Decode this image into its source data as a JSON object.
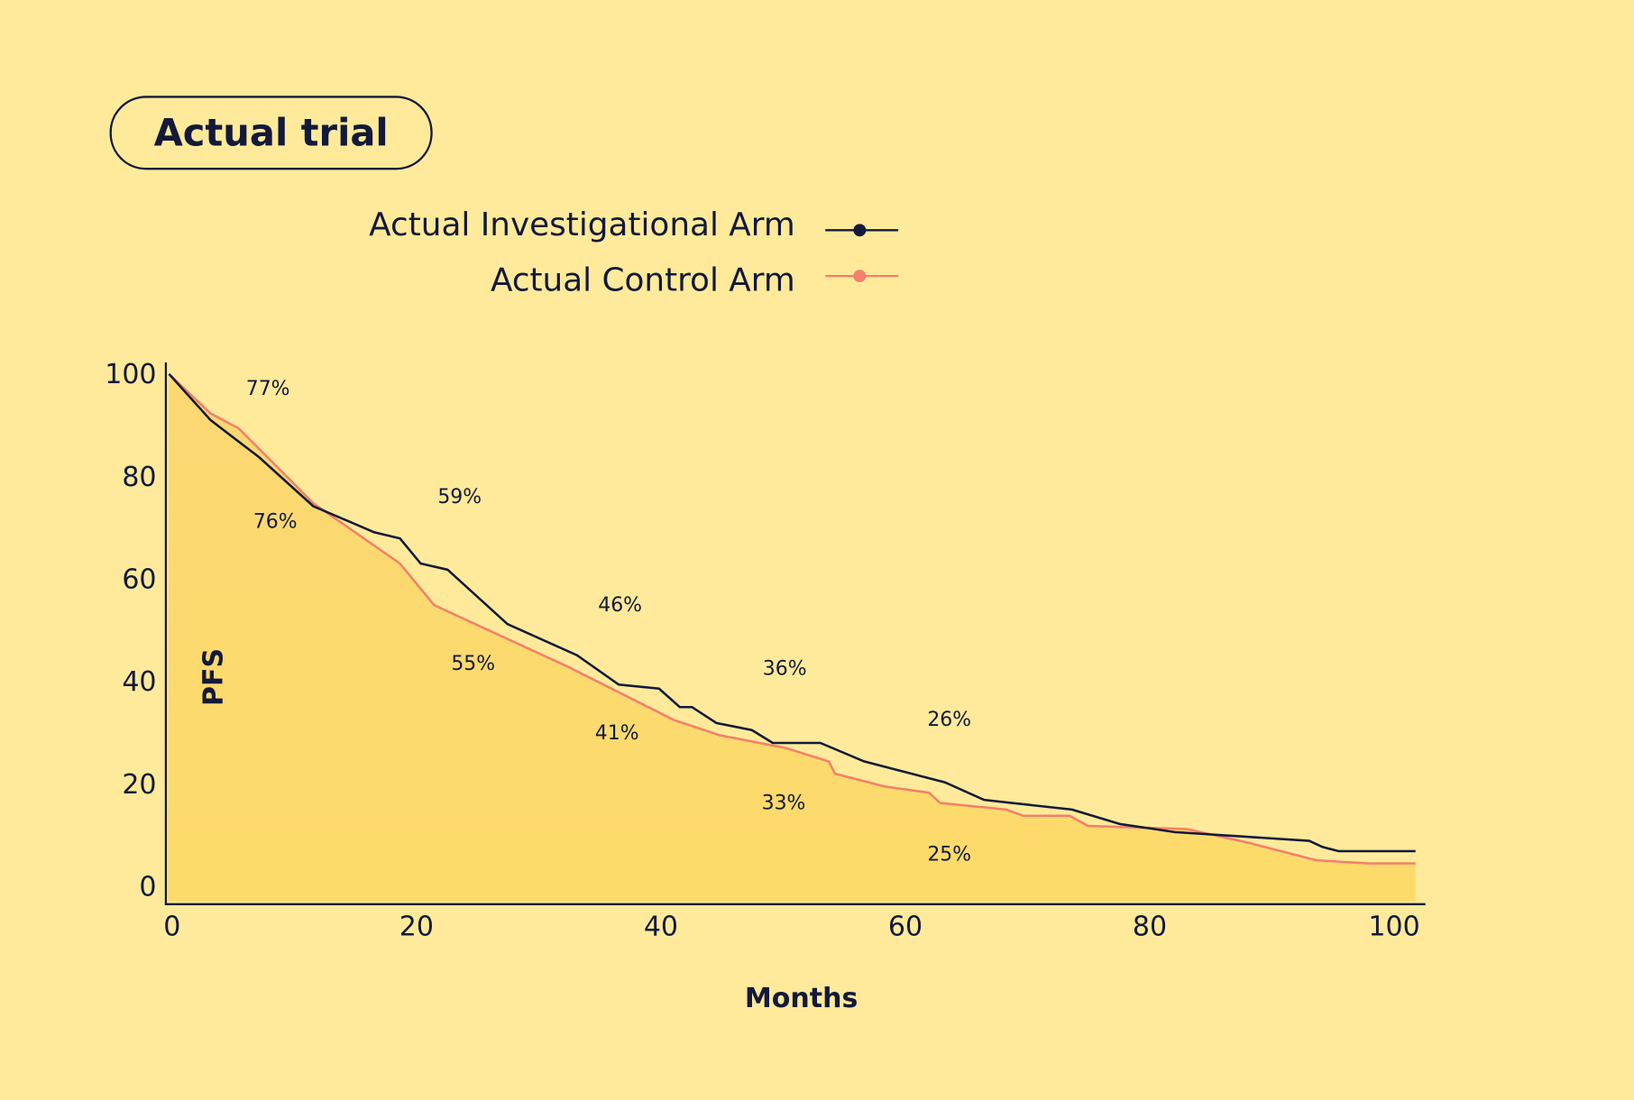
{
  "chart_data": {
    "type": "line",
    "title": "Actual trial",
    "xlabel": "Months",
    "ylabel": "PFS",
    "xlim": [
      0,
      100
    ],
    "ylim": [
      0,
      100
    ],
    "xticks": [
      "0",
      "20",
      "40",
      "60",
      "80",
      "100"
    ],
    "yticks": [
      "0",
      "20",
      "40",
      "60",
      "80",
      "100"
    ],
    "grid": false,
    "legend_placement": "top",
    "colors": {
      "background": "#FEEA9A",
      "fill": "#FDD96A",
      "investigational": "#13193a",
      "control": "#F47F6B"
    },
    "series": [
      {
        "name": "Actual Investigational Arm",
        "x": [
          0,
          3.4,
          7.4,
          11.8,
          16.8,
          18.9,
          20.6,
          22.8,
          27.7,
          33.4,
          36.8,
          40.1,
          41.8,
          42.8,
          44.8,
          47.7,
          49.4,
          53.3,
          56.9,
          63.5,
          66.7,
          73.9,
          77.8,
          82.3,
          93.3,
          94.4,
          95.7,
          102
        ],
        "y": [
          100,
          91,
          83.7,
          74.2,
          69.1,
          67.9,
          63,
          61.8,
          51.2,
          45.1,
          39.4,
          38.6,
          35,
          35,
          31.9,
          30.5,
          28,
          28,
          24.4,
          20.3,
          16.9,
          15,
          12.2,
          10.6,
          8.9,
          7.7,
          6.9,
          6.9
        ]
      },
      {
        "name": "Actual Control Arm",
        "x": [
          0,
          3.4,
          5.7,
          11.8,
          18.9,
          21.7,
          32.8,
          41.3,
          45.1,
          50.5,
          54,
          54.5,
          58.6,
          62.2,
          63.1,
          68.5,
          69.9,
          73.7,
          75.2,
          83.3,
          88.4,
          93.9,
          98.2,
          102
        ],
        "y": [
          100,
          92.3,
          89.4,
          74.8,
          63,
          54.9,
          42.7,
          32.5,
          29.5,
          27,
          24.4,
          22,
          19.5,
          18.3,
          16.3,
          15,
          13.8,
          13.8,
          11.8,
          11.2,
          8.5,
          5.1,
          4.5,
          4.5
        ]
      }
    ],
    "annotations": [
      "77%",
      "76%",
      "59%",
      "55%",
      "46%",
      "41%",
      "36%",
      "33%",
      "26%",
      "25%"
    ]
  }
}
